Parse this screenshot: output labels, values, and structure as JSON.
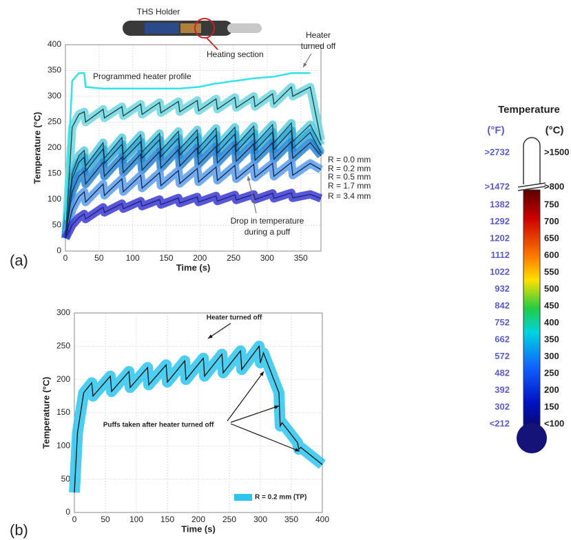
{
  "chart_data": [
    {
      "type": "line",
      "panel_label": "(a)",
      "x_label": "Time (s)",
      "y_label": "Temperature (°C)",
      "xlim": [
        0,
        380
      ],
      "xticks": [
        0,
        50,
        100,
        150,
        200,
        250,
        300,
        350
      ],
      "ylim": [
        0,
        400
      ],
      "yticks": [
        0,
        50,
        100,
        150,
        200,
        250,
        300,
        350,
        400
      ],
      "grid": true,
      "direct_labels": true,
      "x": [
        0,
        10,
        20,
        28,
        30,
        56,
        58,
        84,
        86,
        112,
        114,
        140,
        142,
        168,
        170,
        196,
        198,
        224,
        226,
        252,
        254,
        280,
        282,
        308,
        310,
        336,
        338,
        364,
        380
      ],
      "series": [
        {
          "color": "#2fe3e6",
          "values": [
            60,
            330,
            345,
            345,
            318,
            315,
            315,
            315,
            315,
            315,
            315,
            315,
            315,
            315,
            315,
            318,
            318,
            325,
            325,
            330,
            330,
            335,
            335,
            338,
            338,
            345,
            345,
            345,
            null
          ]
        },
        {
          "color": "#1b3d3d",
          "band_color": "#6fd6e0",
          "values": [
            25,
            240,
            265,
            270,
            250,
            275,
            258,
            280,
            262,
            285,
            265,
            288,
            268,
            290,
            270,
            292,
            272,
            295,
            275,
            298,
            278,
            300,
            280,
            305,
            285,
            318,
            300,
            318,
            215
          ]
        },
        {
          "name": "R = 0.0 mm",
          "color": "#173f4a",
          "band_color": "#5ccbe0",
          "values": [
            25,
            150,
            185,
            195,
            165,
            210,
            180,
            220,
            188,
            225,
            192,
            228,
            195,
            232,
            198,
            235,
            200,
            238,
            203,
            240,
            205,
            242,
            208,
            245,
            210,
            248,
            212,
            245,
            205
          ]
        },
        {
          "name": "R = 0.2 mm",
          "color": "#13364a",
          "band_color": "#37a9d8",
          "values": [
            25,
            140,
            172,
            182,
            155,
            198,
            170,
            207,
            177,
            212,
            180,
            216,
            183,
            219,
            186,
            222,
            188,
            225,
            190,
            227,
            193,
            229,
            195,
            231,
            197,
            234,
            199,
            230,
            190
          ]
        },
        {
          "name": "R = 0.5 mm",
          "color": "#102c4a",
          "band_color": "#2a86d4",
          "values": [
            25,
            115,
            145,
            155,
            130,
            172,
            145,
            182,
            152,
            188,
            157,
            193,
            161,
            197,
            165,
            200,
            168,
            203,
            171,
            206,
            174,
            208,
            176,
            210,
            178,
            212,
            180,
            210,
            185
          ]
        },
        {
          "name": "R = 1.7 mm",
          "color": "#10244a",
          "band_color": "#5a9cec",
          "values": [
            25,
            80,
            105,
            115,
            95,
            130,
            108,
            140,
            115,
            147,
            122,
            152,
            127,
            156,
            131,
            160,
            134,
            163,
            137,
            166,
            140,
            168,
            143,
            170,
            145,
            172,
            147,
            170,
            158
          ]
        },
        {
          "name": "R = 3.4 mm",
          "color": "#1e1e80",
          "band_color": "#3a3ad0",
          "values": [
            25,
            50,
            65,
            72,
            62,
            85,
            75,
            92,
            82,
            97,
            87,
            100,
            90,
            103,
            93,
            105,
            95,
            107,
            97,
            109,
            99,
            110,
            100,
            112,
            102,
            113,
            103,
            110,
            102
          ]
        }
      ],
      "annotations": [
        "THS Holder",
        "Heating section",
        "Programmed heater profile",
        "Heater",
        "turned off",
        "Drop in temperature",
        "during a puff"
      ]
    },
    {
      "type": "line",
      "panel_label": "(b)",
      "x_label": "Time (s)",
      "y_label": "Temperature (°C)",
      "xlim": [
        0,
        400
      ],
      "xticks": [
        0,
        50,
        100,
        150,
        200,
        250,
        300,
        350,
        400
      ],
      "ylim": [
        0,
        300
      ],
      "yticks": [
        0,
        50,
        100,
        150,
        200,
        250,
        300
      ],
      "grid": true,
      "legend": "lower right",
      "x": [
        0,
        5,
        15,
        28,
        30,
        58,
        60,
        88,
        90,
        118,
        120,
        148,
        150,
        178,
        180,
        208,
        210,
        238,
        240,
        268,
        270,
        298,
        300,
        305,
        330,
        332,
        335,
        360,
        362,
        365,
        400
      ],
      "series": [
        {
          "name": "R = 0.2 mm (TP)",
          "color": "#111111",
          "band_color": "#2ec4ec",
          "values": [
            30,
            120,
            180,
            195,
            175,
            205,
            182,
            212,
            188,
            218,
            192,
            222,
            196,
            228,
            200,
            232,
            205,
            238,
            210,
            243,
            215,
            250,
            225,
            240,
            180,
            130,
            135,
            105,
            95,
            98,
            72
          ]
        }
      ],
      "annotations": [
        "Heater turned off",
        "Puffs taken after heater turned off"
      ]
    }
  ],
  "thermometer": {
    "title": "Temperature",
    "f_header": "(°F)",
    "c_header": "(°C)",
    "rows": [
      [
        ">2732",
        ">1500"
      ],
      [
        ">1472",
        ">800"
      ],
      [
        "1382",
        "750"
      ],
      [
        "1292",
        "700"
      ],
      [
        "1202",
        "650"
      ],
      [
        "1112",
        "600"
      ],
      [
        "1022",
        "550"
      ],
      [
        "932",
        "500"
      ],
      [
        "842",
        "450"
      ],
      [
        "752",
        "400"
      ],
      [
        "662",
        "350"
      ],
      [
        "572",
        "300"
      ],
      [
        "482",
        "250"
      ],
      [
        "392",
        "200"
      ],
      [
        "302",
        "150"
      ],
      [
        "<212",
        "<100"
      ]
    ]
  }
}
